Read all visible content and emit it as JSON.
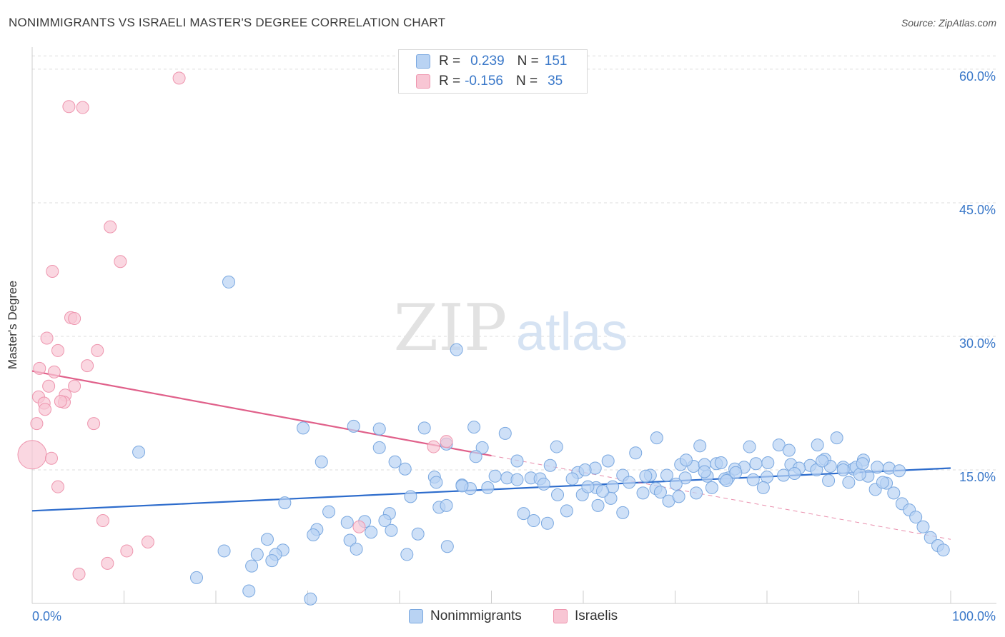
{
  "title": "NONIMMIGRANTS VS ISRAELI MASTER'S DEGREE CORRELATION CHART",
  "source": "Source: ZipAtlas.com",
  "watermark": {
    "zip": "ZIP",
    "atlas": "atlas"
  },
  "colors": {
    "blue_fill": "#b9d3f3",
    "blue_stroke": "#7aa8e0",
    "blue_line": "#2d6ccc",
    "pink_fill": "#f8c6d4",
    "pink_stroke": "#ee95ae",
    "pink_line": "#e0608a",
    "axis_text": "#3a78c9",
    "grid": "#dddddd"
  },
  "legend": {
    "rows": [
      {
        "r_label": "R =",
        "r_value": "0.239",
        "n_label": "N =",
        "n_value": "151",
        "color": "#b9d3f3",
        "stroke": "#7aa8e0"
      },
      {
        "r_label": "R =",
        "r_value": "-0.156",
        "n_label": "N =",
        "n_value": "35",
        "color": "#f8c6d4",
        "stroke": "#ee95ae"
      }
    ]
  },
  "bottom_legend": [
    {
      "label": "Nonimmigrants",
      "color": "#b9d3f3",
      "stroke": "#7aa8e0"
    },
    {
      "label": "Israelis",
      "color": "#f8c6d4",
      "stroke": "#ee95ae"
    }
  ],
  "chart_data": {
    "type": "scatter",
    "title": "NONIMMIGRANTS VS ISRAELI MASTER'S DEGREE CORRELATION CHART",
    "xlabel": "",
    "ylabel": "Master's Degree",
    "xlim": [
      0,
      100
    ],
    "ylim": [
      0,
      62
    ],
    "x_tick_labels": [
      "0.0%",
      "100.0%"
    ],
    "y_ticks": [
      15,
      30,
      45,
      60
    ],
    "y_tick_labels": [
      "15.0%",
      "30.0%",
      "45.0%",
      "60.0%"
    ],
    "grid": true,
    "series": [
      {
        "name": "Nonimmigrants",
        "color": "#b9d3f3",
        "trend": {
          "x0": 0,
          "y0": 10.4,
          "x1": 100,
          "y1": 15.2
        },
        "points": [
          [
            21.4,
            36.1
          ],
          [
            46.2,
            28.5
          ],
          [
            11.6,
            17.0
          ],
          [
            29.5,
            19.7
          ],
          [
            35.0,
            19.9
          ],
          [
            37.8,
            19.6
          ],
          [
            42.7,
            19.7
          ],
          [
            48.1,
            19.8
          ],
          [
            51.5,
            19.1
          ],
          [
            37.8,
            17.5
          ],
          [
            45.1,
            17.9
          ],
          [
            49.0,
            17.5
          ],
          [
            52.8,
            16.0
          ],
          [
            57.1,
            17.6
          ],
          [
            62.7,
            16.0
          ],
          [
            68.0,
            18.6
          ],
          [
            72.7,
            17.7
          ],
          [
            78.1,
            17.6
          ],
          [
            81.3,
            17.8
          ],
          [
            85.5,
            17.8
          ],
          [
            87.6,
            18.6
          ],
          [
            31.5,
            15.9
          ],
          [
            39.5,
            15.9
          ],
          [
            40.6,
            15.1
          ],
          [
            43.8,
            14.2
          ],
          [
            48.3,
            16.5
          ],
          [
            50.4,
            14.3
          ],
          [
            54.3,
            14.1
          ],
          [
            56.4,
            15.5
          ],
          [
            59.4,
            14.7
          ],
          [
            61.3,
            15.2
          ],
          [
            64.3,
            14.4
          ],
          [
            67.3,
            14.4
          ],
          [
            69.1,
            14.4
          ],
          [
            70.6,
            15.6
          ],
          [
            72.0,
            15.4
          ],
          [
            73.2,
            15.6
          ],
          [
            74.5,
            15.7
          ],
          [
            75.8,
            14.1
          ],
          [
            77.5,
            15.3
          ],
          [
            78.8,
            15.7
          ],
          [
            80.1,
            15.8
          ],
          [
            82.6,
            15.6
          ],
          [
            84.7,
            15.5
          ],
          [
            86.3,
            16.2
          ],
          [
            88.3,
            15.3
          ],
          [
            89.4,
            15.1
          ],
          [
            90.5,
            16.1
          ],
          [
            92.0,
            15.3
          ],
          [
            93.3,
            15.2
          ],
          [
            94.4,
            14.9
          ],
          [
            46.8,
            13.3
          ],
          [
            47.7,
            12.9
          ],
          [
            49.6,
            13.0
          ],
          [
            51.7,
            14.1
          ],
          [
            55.3,
            14.0
          ],
          [
            57.2,
            12.2
          ],
          [
            58.8,
            14.0
          ],
          [
            61.4,
            13.0
          ],
          [
            63.2,
            13.1
          ],
          [
            65.0,
            13.6
          ],
          [
            66.5,
            12.4
          ],
          [
            67.9,
            12.9
          ],
          [
            69.3,
            11.5
          ],
          [
            71.1,
            14.1
          ],
          [
            73.5,
            14.3
          ],
          [
            75.4,
            14.0
          ],
          [
            76.5,
            15.1
          ],
          [
            78.5,
            13.9
          ],
          [
            80.0,
            14.2
          ],
          [
            81.8,
            14.4
          ],
          [
            83.5,
            15.2
          ],
          [
            85.4,
            15.0
          ],
          [
            86.9,
            15.4
          ],
          [
            88.3,
            15.0
          ],
          [
            89.7,
            15.3
          ],
          [
            91.0,
            14.3
          ],
          [
            91.8,
            12.8
          ],
          [
            93.0,
            13.5
          ],
          [
            93.8,
            12.4
          ],
          [
            94.7,
            11.2
          ],
          [
            95.5,
            10.5
          ],
          [
            96.2,
            9.7
          ],
          [
            97.0,
            8.6
          ],
          [
            97.8,
            7.4
          ],
          [
            98.6,
            6.5
          ],
          [
            99.2,
            6.0
          ],
          [
            27.5,
            11.3
          ],
          [
            32.3,
            10.3
          ],
          [
            38.9,
            10.1
          ],
          [
            44.3,
            10.8
          ],
          [
            45.1,
            11.0
          ],
          [
            53.5,
            10.1
          ],
          [
            54.6,
            9.3
          ],
          [
            56.1,
            9.0
          ],
          [
            58.2,
            10.4
          ],
          [
            59.9,
            12.2
          ],
          [
            61.6,
            11.0
          ],
          [
            63.0,
            11.8
          ],
          [
            64.3,
            10.2
          ],
          [
            66.8,
            14.3
          ],
          [
            68.4,
            12.5
          ],
          [
            70.4,
            12.0
          ],
          [
            72.3,
            12.4
          ],
          [
            74.0,
            13.0
          ],
          [
            75.6,
            13.8
          ],
          [
            31.0,
            8.3
          ],
          [
            34.3,
            9.1
          ],
          [
            36.2,
            9.2
          ],
          [
            36.9,
            8.0
          ],
          [
            38.4,
            9.3
          ],
          [
            42.0,
            7.8
          ],
          [
            45.2,
            6.4
          ],
          [
            30.6,
            7.7
          ],
          [
            25.6,
            7.2
          ],
          [
            27.3,
            6.0
          ],
          [
            26.5,
            5.5
          ],
          [
            20.9,
            5.9
          ],
          [
            24.5,
            5.5
          ],
          [
            23.9,
            4.2
          ],
          [
            26.1,
            4.8
          ],
          [
            23.6,
            1.4
          ],
          [
            30.3,
            0.5
          ],
          [
            17.9,
            2.9
          ],
          [
            34.6,
            7.1
          ],
          [
            35.3,
            6.1
          ],
          [
            39.1,
            8.2
          ],
          [
            40.8,
            5.5
          ],
          [
            44.0,
            13.6
          ],
          [
            46.8,
            13.2
          ],
          [
            52.8,
            13.9
          ],
          [
            55.7,
            13.4
          ],
          [
            60.5,
            13.1
          ],
          [
            62.1,
            12.6
          ],
          [
            70.1,
            13.4
          ],
          [
            73.2,
            14.8
          ],
          [
            76.6,
            14.7
          ],
          [
            79.6,
            13.0
          ],
          [
            83.0,
            14.6
          ],
          [
            86.7,
            13.8
          ],
          [
            88.9,
            13.6
          ],
          [
            90.1,
            14.5
          ],
          [
            92.6,
            13.6
          ],
          [
            60.2,
            15.0
          ],
          [
            65.7,
            16.9
          ],
          [
            71.2,
            16.1
          ],
          [
            75.0,
            15.8
          ],
          [
            82.4,
            17.2
          ],
          [
            86.0,
            16.0
          ],
          [
            90.4,
            15.7
          ],
          [
            41.2,
            12.0
          ]
        ]
      },
      {
        "name": "Israelis",
        "color": "#f8c6d4",
        "trend": {
          "x0": 0,
          "y0": 26.1,
          "x1": 50,
          "y1": 16.6
        },
        "trend_dashed_to": {
          "x1": 100,
          "y1": 7.2
        },
        "points": [
          [
            16.0,
            59.0
          ],
          [
            4.0,
            55.8
          ],
          [
            5.5,
            55.7
          ],
          [
            8.5,
            42.3
          ],
          [
            9.6,
            38.4
          ],
          [
            2.2,
            37.3
          ],
          [
            4.2,
            32.1
          ],
          [
            4.6,
            32.0
          ],
          [
            1.6,
            29.8
          ],
          [
            2.8,
            28.4
          ],
          [
            7.1,
            28.4
          ],
          [
            6.0,
            26.7
          ],
          [
            0.8,
            26.4
          ],
          [
            2.4,
            26.0
          ],
          [
            1.8,
            24.4
          ],
          [
            4.6,
            24.4
          ],
          [
            3.6,
            23.4
          ],
          [
            0.7,
            23.2
          ],
          [
            3.5,
            22.6
          ],
          [
            1.3,
            22.5
          ],
          [
            3.1,
            22.7
          ],
          [
            1.4,
            21.8
          ],
          [
            6.7,
            20.2
          ],
          [
            0.5,
            20.2
          ],
          [
            0.0,
            16.7
          ],
          [
            2.1,
            16.3
          ],
          [
            45.1,
            18.2
          ],
          [
            43.7,
            17.6
          ],
          [
            2.8,
            13.1
          ],
          [
            7.7,
            9.3
          ],
          [
            12.6,
            6.9
          ],
          [
            10.3,
            5.9
          ],
          [
            8.2,
            4.5
          ],
          [
            5.1,
            3.3
          ],
          [
            35.6,
            8.6
          ]
        ]
      }
    ]
  }
}
